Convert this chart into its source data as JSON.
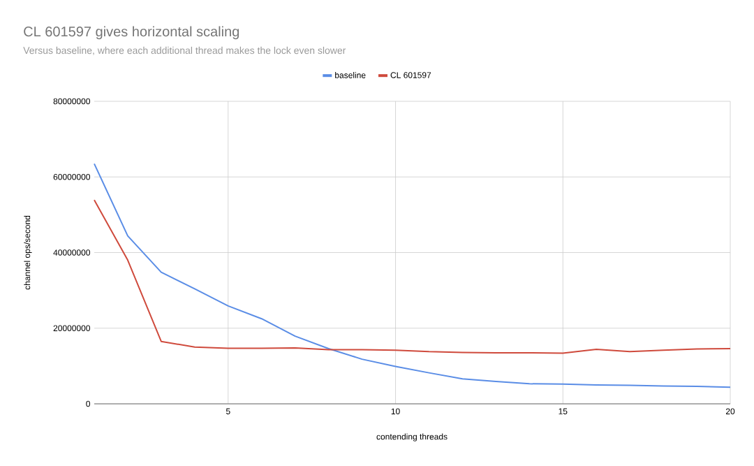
{
  "chart_data": {
    "type": "line",
    "title": "CL 601597 gives horizontal scaling",
    "subtitle": "Versus baseline, where each additional thread makes the lock even slower",
    "xlabel": "contending threads",
    "ylabel": "channel ops/second",
    "x": [
      1,
      2,
      3,
      4,
      5,
      6,
      7,
      8,
      9,
      10,
      11,
      12,
      13,
      14,
      15,
      16,
      17,
      18,
      19,
      20
    ],
    "series": [
      {
        "name": "baseline",
        "color": "#5a8de6",
        "values": [
          63500000,
          44400000,
          34800000,
          30400000,
          25900000,
          22500000,
          17900000,
          14600000,
          11800000,
          9900000,
          8200000,
          6600000,
          5900000,
          5300000,
          5200000,
          5000000,
          4900000,
          4700000,
          4600000,
          4400000
        ]
      },
      {
        "name": "CL 601597",
        "color": "#cf4a3c",
        "values": [
          53900000,
          38000000,
          16500000,
          15000000,
          14700000,
          14700000,
          14800000,
          14300000,
          14300000,
          14200000,
          13800000,
          13600000,
          13500000,
          13500000,
          13400000,
          14400000,
          13800000,
          14200000,
          14500000,
          14600000
        ]
      }
    ],
    "xlim": [
      1,
      20
    ],
    "xticks": [
      5,
      10,
      15,
      20
    ],
    "ylim": [
      0,
      80000000
    ],
    "yticks": [
      0,
      20000000,
      40000000,
      60000000,
      80000000
    ],
    "grid": true,
    "legend": "top"
  }
}
